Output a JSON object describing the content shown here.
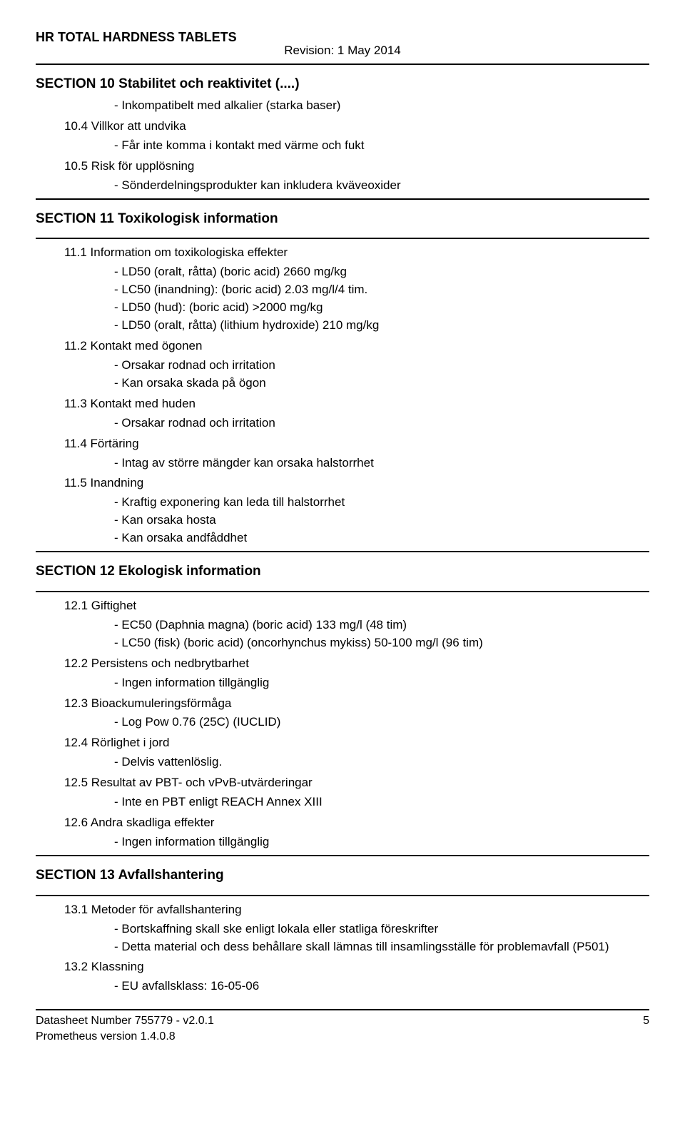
{
  "header": {
    "product": "HR TOTAL HARDNESS TABLETS",
    "revision": "Revision: 1  May  2014"
  },
  "section10": {
    "title": "SECTION 10   Stabilitet och reaktivitet (....)",
    "group1": [
      "Inkompatibelt med alkalier (starka baser)"
    ],
    "sub1": "10.4 Villkor att undvika",
    "sub1_items": [
      "Får inte komma i kontakt med värme och fukt"
    ],
    "sub2": "10.5 Risk för upplösning",
    "sub2_items": [
      "Sönderdelningsprodukter kan inkludera kväveoxider"
    ]
  },
  "section11": {
    "title": "SECTION 11   Toxikologisk information",
    "sub1": "11.1 Information om toxikologiska effekter",
    "sub1_items": [
      "LD50 (oralt, råtta) (boric acid) 2660 mg/kg",
      "LC50 (inandning): (boric acid) 2.03 mg/l/4 tim.",
      "LD50 (hud): (boric acid) >2000 mg/kg",
      "LD50 (oralt, råtta) (lithium hydroxide) 210 mg/kg"
    ],
    "sub2": "11.2 Kontakt med ögonen",
    "sub2_items": [
      "Orsakar rodnad och irritation",
      "Kan orsaka skada på ögon"
    ],
    "sub3": "11.3 Kontakt med huden",
    "sub3_items": [
      "Orsakar rodnad och irritation"
    ],
    "sub4": "11.4 Förtäring",
    "sub4_items": [
      "Intag av större mängder kan orsaka halstorrhet"
    ],
    "sub5": "11.5 Inandning",
    "sub5_items": [
      "Kraftig exponering kan leda till halstorrhet",
      "Kan orsaka hosta",
      "Kan orsaka andfåddhet"
    ]
  },
  "section12": {
    "title": "SECTION 12   Ekologisk information",
    "sub1": "12.1 Giftighet",
    "sub1_items": [
      "EC50 (Daphnia magna) (boric acid) 133 mg/l (48 tim)",
      "LC50 (fisk) (boric acid) (oncorhynchus mykiss) 50-100 mg/l (96 tim)"
    ],
    "sub2": "12.2 Persistens och nedbrytbarhet",
    "sub2_items": [
      "Ingen information tillgänglig"
    ],
    "sub3": "12.3 Bioackumuleringsförmåga",
    "sub3_items": [
      "Log Pow 0.76 (25C) (IUCLID)"
    ],
    "sub4": "12.4 Rörlighet i jord",
    "sub4_items": [
      "Delvis vattenlöslig."
    ],
    "sub5": "12.5 Resultat av PBT- och vPvB-utvärderingar",
    "sub5_items": [
      "Inte en PBT enligt REACH Annex XIII"
    ],
    "sub6": "12.6 Andra skadliga effekter",
    "sub6_items": [
      "Ingen information tillgänglig"
    ]
  },
  "section13": {
    "title": "SECTION 13   Avfallshantering",
    "sub1": "13.1 Metoder för avfallshantering",
    "sub1_items": [
      "Bortskaffning skall ske enligt lokala eller statliga föreskrifter",
      "Detta material och dess behållare skall lämnas till insamlingsställe för problemavfall (P501)"
    ],
    "sub2": "13.2 Klassning",
    "sub2_items": [
      "EU avfallsklass: 16-05-06"
    ]
  },
  "footer": {
    "line1": "Datasheet Number 755779 - v2.0.1",
    "line2": "Prometheus version 1.4.0.8",
    "page": "5"
  }
}
